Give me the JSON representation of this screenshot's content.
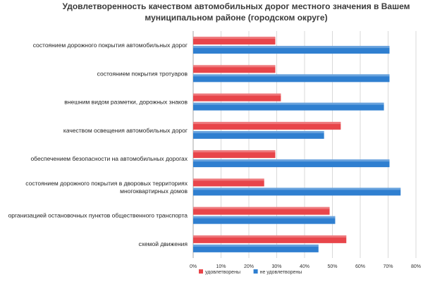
{
  "chart_data": {
    "type": "bar",
    "orientation": "horizontal",
    "title_lines": [
      "Удовлетворенность качеством автомобильных дорог местного значения в Вашем",
      "муниципальном районе (городском округе)"
    ],
    "categories": [
      [
        "состоянием дорожного покрытия автомобильных дорог"
      ],
      [
        "состоянием покрытия тротуаров"
      ],
      [
        "внешним видом разметки, дорожных знаков"
      ],
      [
        "качеством освещения автомобильных дорог"
      ],
      [
        "обеспечением безопасности на автомобильных дорогах"
      ],
      [
        "состоянием дорожного покрытия в дворовых территориях",
        "многоквартирных домов"
      ],
      [
        "организацией остановочных пунктов общественного транспорта"
      ],
      [
        "схемой движения"
      ]
    ],
    "series": [
      {
        "name": "удовлетворены",
        "color": "#e8454a",
        "values": [
          29.5,
          29.5,
          31.5,
          53,
          29.5,
          25.5,
          49,
          55
        ]
      },
      {
        "name": "не удовлетворены",
        "color": "#2f7fd0",
        "values": [
          70.5,
          70.5,
          68.5,
          47,
          70.5,
          74.5,
          51,
          45
        ]
      }
    ],
    "xlim": [
      0,
      80
    ],
    "x_ticks": [
      "0%",
      "10%",
      "20%",
      "30%",
      "40%",
      "50%",
      "60%",
      "70%",
      "80%"
    ],
    "grid": "vertical",
    "legend_position": "bottom"
  }
}
